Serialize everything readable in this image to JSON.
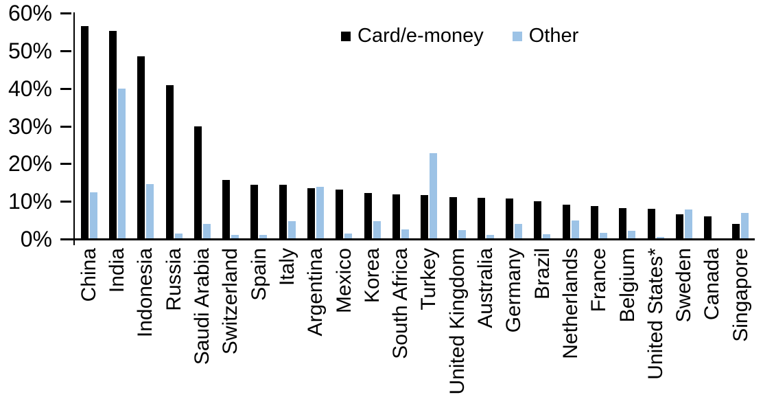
{
  "chart_data": {
    "type": "bar",
    "title": "",
    "categories": [
      "China",
      "India",
      "Indonesia",
      "Russia",
      "Saudi Arabia",
      "Switzerland",
      "Spain",
      "Italy",
      "Argentina",
      "Mexico",
      "Korea",
      "South Africa",
      "Turkey",
      "United Kingdom",
      "Australia",
      "Germany",
      "Brazil",
      "Netherlands",
      "France",
      "Belgium",
      "United States*",
      "Sweden",
      "Canada",
      "Singapore"
    ],
    "series": [
      {
        "name": "Card/e-money",
        "color": "#000000",
        "values": [
          56.3,
          55.1,
          48.4,
          40.6,
          29.7,
          15.5,
          14.3,
          14.2,
          13.3,
          12.9,
          12.0,
          11.6,
          11.5,
          10.9,
          10.7,
          10.5,
          9.8,
          9.0,
          8.5,
          8.1,
          7.8,
          6.4,
          5.9,
          3.8
        ]
      },
      {
        "name": "Other",
        "color": "#9DC3E6",
        "values": [
          12.2,
          39.7,
          14.4,
          1.2,
          3.8,
          1.0,
          0.9,
          4.6,
          13.7,
          1.3,
          4.5,
          2.3,
          22.6,
          2.1,
          1.0,
          3.8,
          1.1,
          4.8,
          1.5,
          2.0,
          0.3,
          7.7,
          0.0,
          6.7
        ]
      }
    ],
    "xlabel": "",
    "ylabel": "",
    "ylim": [
      0,
      60
    ],
    "ytick_labels": [
      "0%",
      "10%",
      "20%",
      "30%",
      "40%",
      "50%",
      "60%"
    ],
    "legend_position": "top-center",
    "grid": false,
    "axis_color": "#000000",
    "background_color": "#ffffff"
  }
}
